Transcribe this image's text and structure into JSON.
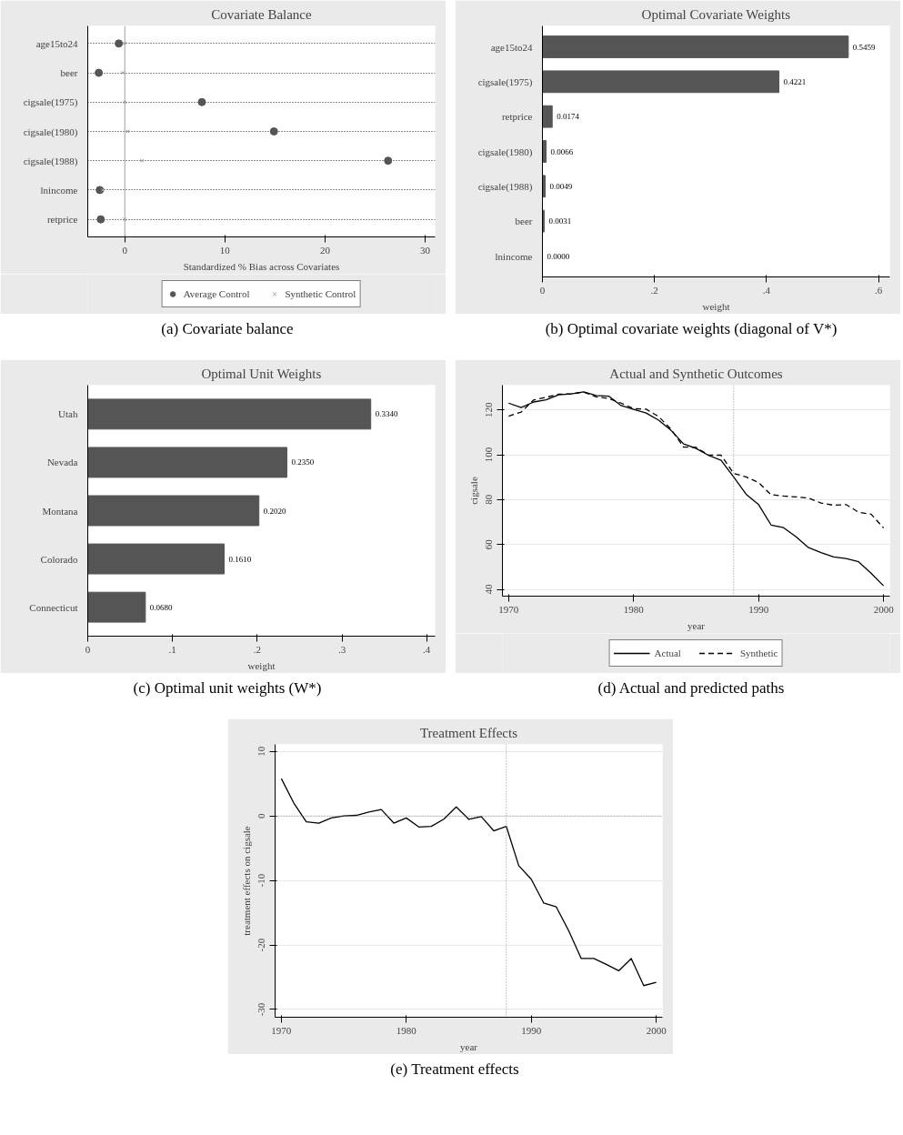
{
  "chart_data": [
    {
      "type": "scatter",
      "title": "Covariate Balance",
      "xlabel": "Standardized % Bias across Covariates",
      "orientation": "horizontal",
      "categories": [
        "age15to24",
        "beer",
        "cigsale(1975)",
        "cigsale(1980)",
        "cigsale(1988)",
        "lnincome",
        "retprice"
      ],
      "series": [
        {
          "name": "Average Control",
          "color": "#555555",
          "marker": "circle",
          "values": [
            -0.6,
            -2.6,
            7.7,
            14.9,
            26.3,
            -2.5,
            -2.4
          ]
        },
        {
          "name": "Synthetic Control",
          "color": "#a0a0a0",
          "marker": "cross",
          "values": [
            0.0,
            -0.2,
            0.0,
            0.3,
            1.7,
            -2.2,
            0.0
          ]
        }
      ],
      "xlim": [
        -3.7,
        31.0
      ],
      "xticks": [
        0,
        10,
        20,
        30
      ],
      "grid": "y",
      "legend": "bottom",
      "ref_lines": [
        {
          "axis": "x",
          "value": 0,
          "color": "#a0a0a0",
          "line_style": "solid"
        }
      ],
      "annotations": [
        "(a) Covariate balance"
      ]
    },
    {
      "type": "bar",
      "title": "Optimal Covariate Weights",
      "xlabel": "weight",
      "orientation": "horizontal",
      "categories": [
        "age15to24",
        "cigsale(1975)",
        "retprice",
        "cigsale(1980)",
        "cigsale(1988)",
        "beer",
        "lnincome"
      ],
      "values": [
        0.5459,
        0.4221,
        0.0174,
        0.0066,
        0.0049,
        0.0031,
        0.0
      ],
      "value_labels": [
        "0.5459",
        "0.4221",
        "0.0174",
        "0.0066",
        "0.0049",
        "0.0031",
        "0.0000"
      ],
      "color": "#555555",
      "xlim": [
        0,
        0.62
      ],
      "xticks": [
        0,
        {
          "value": 0.2,
          "label": ".2"
        },
        {
          "value": 0.4,
          "label": ".4"
        },
        {
          "value": 0.6,
          "label": ".6"
        }
      ],
      "annotations": [
        "(b) Optimal covariate weights (diagonal of V*)"
      ]
    },
    {
      "type": "bar",
      "title": "Optimal Unit Weights",
      "xlabel": "weight",
      "orientation": "horizontal",
      "categories": [
        "Utah",
        "Nevada",
        "Montana",
        "Colorado",
        "Connecticut"
      ],
      "values": [
        0.334,
        0.235,
        0.202,
        0.161,
        0.068
      ],
      "value_labels": [
        "0.3340",
        "0.2350",
        "0.2020",
        "0.1610",
        "0.0680"
      ],
      "color": "#555555",
      "xlim": [
        0,
        0.41
      ],
      "xticks": [
        0,
        {
          "value": 0.1,
          "label": ".1"
        },
        {
          "value": 0.2,
          "label": ".2"
        },
        {
          "value": 0.3,
          "label": ".3"
        },
        {
          "value": 0.4,
          "label": ".4"
        }
      ],
      "annotations": [
        "(c) Optimal unit weights (W*)"
      ]
    },
    {
      "type": "line",
      "title": "Actual and Synthetic Outcomes",
      "xlabel": "year",
      "ylabel": "cigsale",
      "x": [
        1970,
        1971,
        1972,
        1973,
        1974,
        1975,
        1976,
        1977,
        1978,
        1979,
        1980,
        1981,
        1982,
        1983,
        1984,
        1985,
        1986,
        1987,
        1988,
        1989,
        1990,
        1991,
        1992,
        1993,
        1994,
        1995,
        1996,
        1997,
        1998,
        1999,
        2000
      ],
      "series": [
        {
          "name": "Actual",
          "color": "#000000",
          "line_style": "solid",
          "values": [
            123.0,
            121.0,
            123.5,
            124.5,
            126.7,
            127.1,
            128.0,
            126.4,
            126.1,
            121.9,
            120.2,
            118.6,
            115.4,
            110.8,
            104.8,
            102.8,
            99.7,
            97.5,
            90.1,
            82.4,
            77.8,
            68.7,
            67.5,
            63.4,
            58.6,
            56.4,
            54.5,
            53.8,
            52.3,
            47.2,
            41.6
          ]
        },
        {
          "name": "Synthetic",
          "color": "#000000",
          "line_style": "dashed",
          "values": [
            117.2,
            119.0,
            124.4,
            125.6,
            127.0,
            127.1,
            127.9,
            125.8,
            125.1,
            123.0,
            120.5,
            120.3,
            117.0,
            111.3,
            103.4,
            103.3,
            99.8,
            99.8,
            91.7,
            90.1,
            87.6,
            82.2,
            81.6,
            81.2,
            80.7,
            78.5,
            77.5,
            77.8,
            74.4,
            73.5,
            67.4
          ]
        }
      ],
      "xlim": [
        1969.5,
        2000.5
      ],
      "xticks": [
        1970,
        1980,
        1990,
        2000
      ],
      "ylim": [
        37,
        131
      ],
      "yticks": [
        40,
        60,
        80,
        100,
        120
      ],
      "grid": "y",
      "legend": "bottom",
      "ref_lines": [
        {
          "axis": "x",
          "value": 1988,
          "color": "#888888",
          "line_style": "dotted"
        }
      ],
      "annotations": [
        "(d) Actual and predicted paths"
      ]
    },
    {
      "type": "line",
      "title": "Treatment Effects",
      "xlabel": "year",
      "ylabel": "treatment effects on cigsale",
      "x": [
        1970,
        1971,
        1972,
        1973,
        1974,
        1975,
        1976,
        1977,
        1978,
        1979,
        1980,
        1981,
        1982,
        1983,
        1984,
        1985,
        1986,
        1987,
        1988,
        1989,
        1990,
        1991,
        1992,
        1993,
        1994,
        1995,
        1996,
        1997,
        1998,
        1999,
        2000
      ],
      "series": [
        {
          "color": "#000000",
          "line_style": "solid",
          "values": [
            5.8,
            2.0,
            -0.9,
            -1.1,
            -0.3,
            0.0,
            0.1,
            0.6,
            1.0,
            -1.1,
            -0.3,
            -1.7,
            -1.6,
            -0.5,
            1.4,
            -0.5,
            -0.1,
            -2.3,
            -1.6,
            -7.7,
            -9.8,
            -13.5,
            -14.1,
            -17.8,
            -22.1,
            -22.1,
            -23.0,
            -24.0,
            -22.1,
            -26.3,
            -25.8
          ]
        }
      ],
      "xlim": [
        1969.5,
        2000.5
      ],
      "xticks": [
        1970,
        1980,
        1990,
        2000
      ],
      "ylim": [
        -31.2,
        11.1
      ],
      "yticks": [
        -30,
        -20,
        -10,
        0,
        10
      ],
      "grid": "y",
      "ref_lines": [
        {
          "axis": "x",
          "value": 1988,
          "color": "#888888",
          "line_style": "dotted"
        },
        {
          "axis": "y",
          "value": 0,
          "color": "#888888",
          "line_style": "dotted"
        }
      ],
      "annotations": [
        "(e) Treatment effects"
      ]
    }
  ]
}
